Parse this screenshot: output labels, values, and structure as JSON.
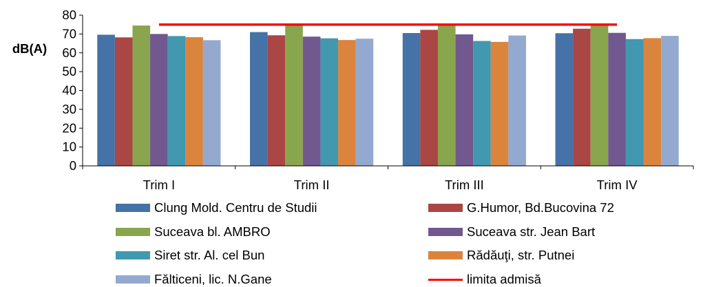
{
  "chart_data": {
    "type": "bar",
    "ylabel": "dB(A)",
    "ylim": [
      0,
      80
    ],
    "yticks": [
      "0",
      "10",
      "20",
      "30",
      "40",
      "50",
      "60",
      "70",
      "80"
    ],
    "categories": [
      "Trim I",
      "Trim II",
      "Trim III",
      "Trim IV"
    ],
    "series": [
      {
        "name": "Clung Mold. Centru de Studii",
        "color": "#4572a7",
        "values": [
          69.6,
          71.0,
          70.5,
          70.4
        ]
      },
      {
        "name": "G.Humor, Bd.Bucovina 72",
        "color": "#aa4643",
        "values": [
          68.2,
          69.3,
          72.2,
          72.8
        ]
      },
      {
        "name": "Suceava bl. AMBRO",
        "color": "#89a54e",
        "values": [
          74.5,
          75.3,
          75.4,
          75.3
        ]
      },
      {
        "name": "Suceava str. Jean Bart",
        "color": "#71588f",
        "values": [
          70.0,
          68.6,
          69.8,
          70.6
        ]
      },
      {
        "name": "Siret str. Al. cel Bun",
        "color": "#4198af",
        "values": [
          68.9,
          67.7,
          66.3,
          67.3
        ]
      },
      {
        "name": "Rădăuţi, str. Putnei",
        "color": "#db843d",
        "values": [
          68.3,
          66.8,
          65.8,
          67.8
        ]
      },
      {
        "name": "Fălticeni, lic. N.Gane",
        "color": "#93a9cf",
        "values": [
          66.7,
          67.5,
          69.2,
          69.0
        ]
      }
    ],
    "limit": {
      "name": "limita admisă",
      "color": "#ff0000",
      "value": 75
    },
    "legend_position": "bottom"
  }
}
